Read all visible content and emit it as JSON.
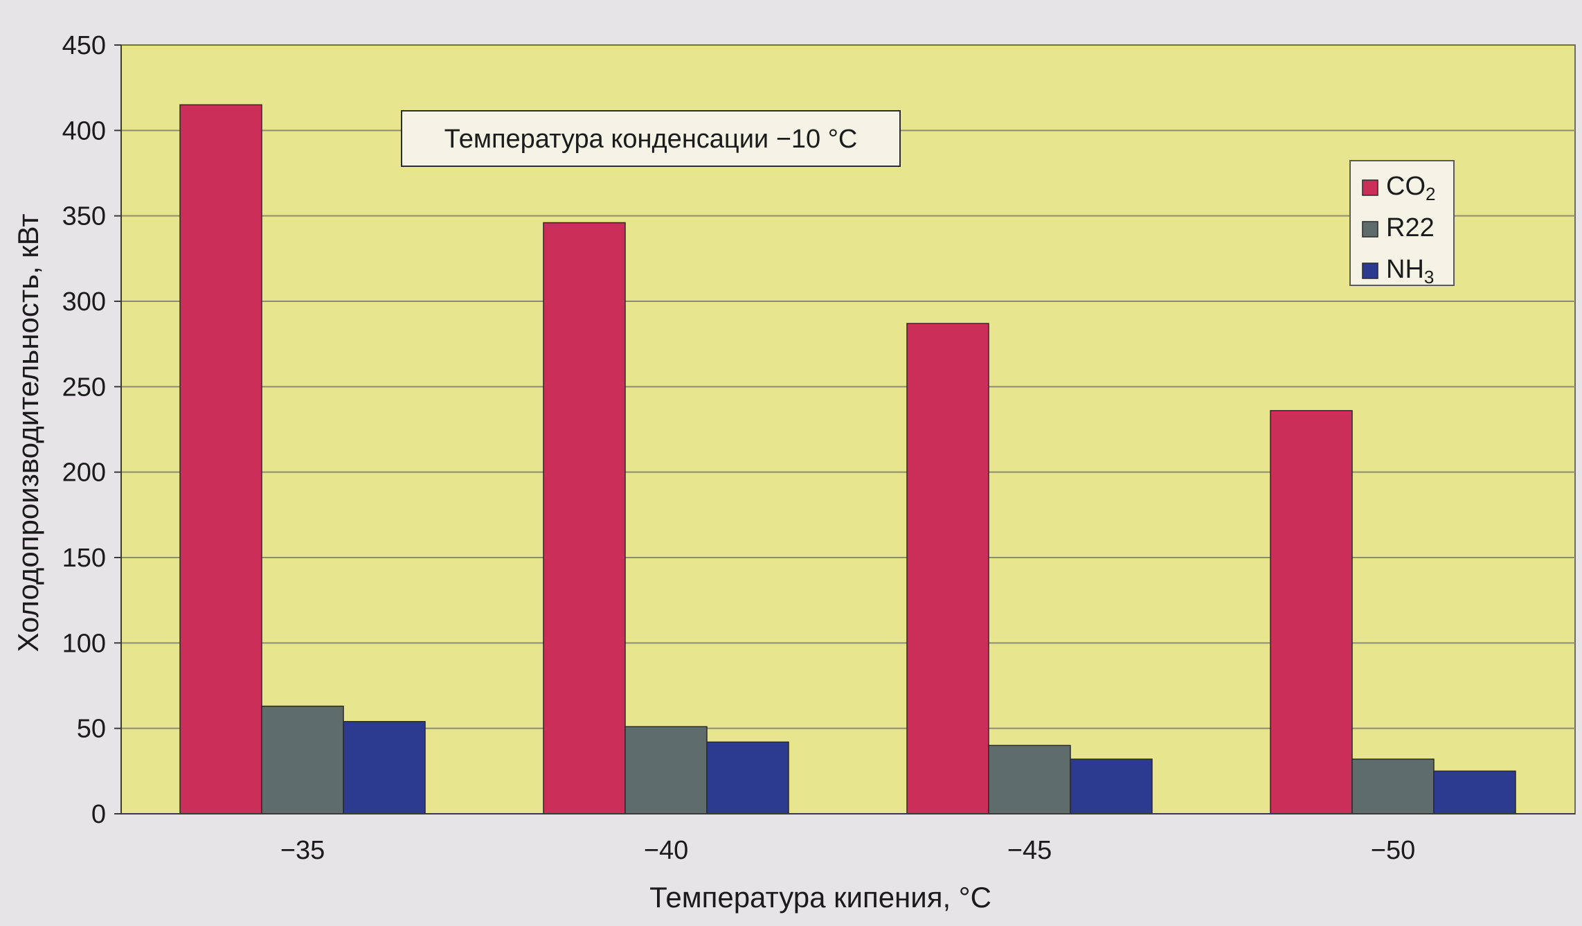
{
  "chart_data": {
    "type": "bar",
    "title": "",
    "annotation": "Температура конденсации  −10 °С",
    "xlabel": "Температура кипения, °С",
    "ylabel": "Холодопроизводительность, кВт",
    "categories": [
      "−35",
      "−40",
      "−45",
      "−50"
    ],
    "ylim": [
      0,
      450
    ],
    "yticks": [
      "0",
      "50",
      "100",
      "150",
      "200",
      "250",
      "300",
      "350",
      "400",
      "450"
    ],
    "grid": true,
    "legend_position": "top-right",
    "series": [
      {
        "name": "CO",
        "name_sub": "2",
        "color": "#cc2e5a",
        "values": [
          415,
          346,
          287,
          236
        ]
      },
      {
        "name": "R22",
        "name_sub": "",
        "color": "#5f6c6c",
        "values": [
          63,
          51,
          40,
          32
        ]
      },
      {
        "name": "NH",
        "name_sub": "3",
        "color": "#2c3a90",
        "values": [
          54,
          42,
          32,
          25
        ]
      }
    ],
    "colors": {
      "plot_background": "#e8e58f",
      "page_background": "#e6e4e6",
      "gridline": "#8e8c72"
    }
  }
}
